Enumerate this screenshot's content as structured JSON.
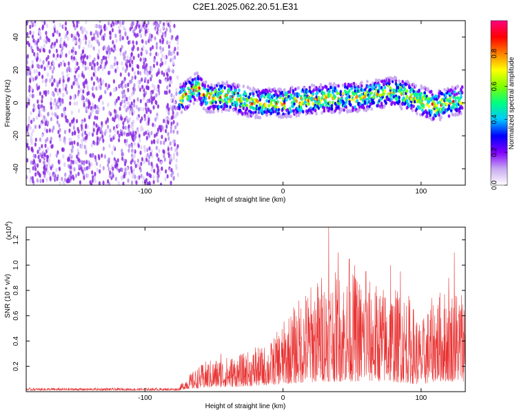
{
  "chart_data": [
    {
      "type": "heatmap",
      "title": "C2E1.2025.062.20.51.E31",
      "xlabel": "Height of straight line (km)",
      "ylabel": "Frequency (Hz)",
      "xlim": [
        -186,
        132
      ],
      "ylim": [
        -50,
        50
      ],
      "x_ticks": [
        -100,
        0,
        100
      ],
      "y_ticks": [
        -40,
        -20,
        0,
        20,
        40
      ],
      "colorbar": {
        "label": "Normalized spectral amplitude",
        "range": [
          0,
          1
        ],
        "ticks": [
          "0.0",
          "0.2",
          "0.4",
          "0.6",
          "0.8"
        ],
        "colors": [
          "#ffffff",
          "#c8a8f0",
          "#8000ff",
          "#0000ff",
          "#00c8ff",
          "#00ff80",
          "#80ff00",
          "#ffff00",
          "#ff8000",
          "#ff0000",
          "#ff0080"
        ]
      },
      "features": {
        "noise_region_x": [
          -186,
          -76
        ],
        "signal_track": [
          {
            "x": -75,
            "y": 2
          },
          {
            "x": -62,
            "y": 10
          },
          {
            "x": -55,
            "y": 3
          },
          {
            "x": -40,
            "y": 4
          },
          {
            "x": -22,
            "y": 0
          },
          {
            "x": 0,
            "y": 0
          },
          {
            "x": 20,
            "y": 2
          },
          {
            "x": 40,
            "y": 3
          },
          {
            "x": 60,
            "y": 4
          },
          {
            "x": 80,
            "y": 7
          },
          {
            "x": 95,
            "y": 3
          },
          {
            "x": 110,
            "y": -2
          },
          {
            "x": 130,
            "y": 2
          }
        ]
      }
    },
    {
      "type": "line",
      "xlabel": "Height of straight line (km)",
      "ylabel": "SNR (10 * v/v)",
      "y_scale_label": "(x10",
      "y_scale_exp": "4",
      "xlim": [
        -186,
        132
      ],
      "ylim": [
        0,
        1.3
      ],
      "x_ticks": [
        -100,
        0,
        100
      ],
      "y_ticks": [
        "0.2",
        "0.4",
        "0.6",
        "0.8",
        "1.0",
        "1.2"
      ],
      "line_color": "#e83030",
      "envelope": [
        {
          "x": -186,
          "lo": 0.01,
          "hi": 0.03
        },
        {
          "x": -76,
          "lo": 0.01,
          "hi": 0.03
        },
        {
          "x": -70,
          "lo": 0.02,
          "hi": 0.12
        },
        {
          "x": -55,
          "lo": 0.03,
          "hi": 0.25
        },
        {
          "x": -30,
          "lo": 0.04,
          "hi": 0.3
        },
        {
          "x": -10,
          "lo": 0.05,
          "hi": 0.38
        },
        {
          "x": 0,
          "lo": 0.06,
          "hi": 0.55
        },
        {
          "x": 15,
          "lo": 0.07,
          "hi": 0.8
        },
        {
          "x": 30,
          "lo": 0.08,
          "hi": 0.95
        },
        {
          "x": 50,
          "lo": 0.08,
          "hi": 0.95
        },
        {
          "x": 70,
          "lo": 0.08,
          "hi": 0.85
        },
        {
          "x": 90,
          "lo": 0.07,
          "hi": 0.8
        },
        {
          "x": 100,
          "lo": 0.05,
          "hi": 0.55
        },
        {
          "x": 110,
          "lo": 0.08,
          "hi": 0.8
        },
        {
          "x": 132,
          "lo": 0.08,
          "hi": 0.85
        }
      ],
      "spikes": [
        {
          "x": 33,
          "y": 1.3
        },
        {
          "x": 40,
          "y": 1.1
        },
        {
          "x": 28,
          "y": 0.9
        },
        {
          "x": 48,
          "y": 1.05
        },
        {
          "x": 52,
          "y": 1.0
        },
        {
          "x": 60,
          "y": 0.95
        },
        {
          "x": 78,
          "y": 1.0
        },
        {
          "x": 85,
          "y": 0.95
        },
        {
          "x": 124,
          "y": 1.1
        },
        {
          "x": 120,
          "y": 0.9
        },
        {
          "x": -45,
          "y": 0.3
        },
        {
          "x": -20,
          "y": 0.35
        },
        {
          "x": -5,
          "y": 0.38
        }
      ]
    }
  ]
}
